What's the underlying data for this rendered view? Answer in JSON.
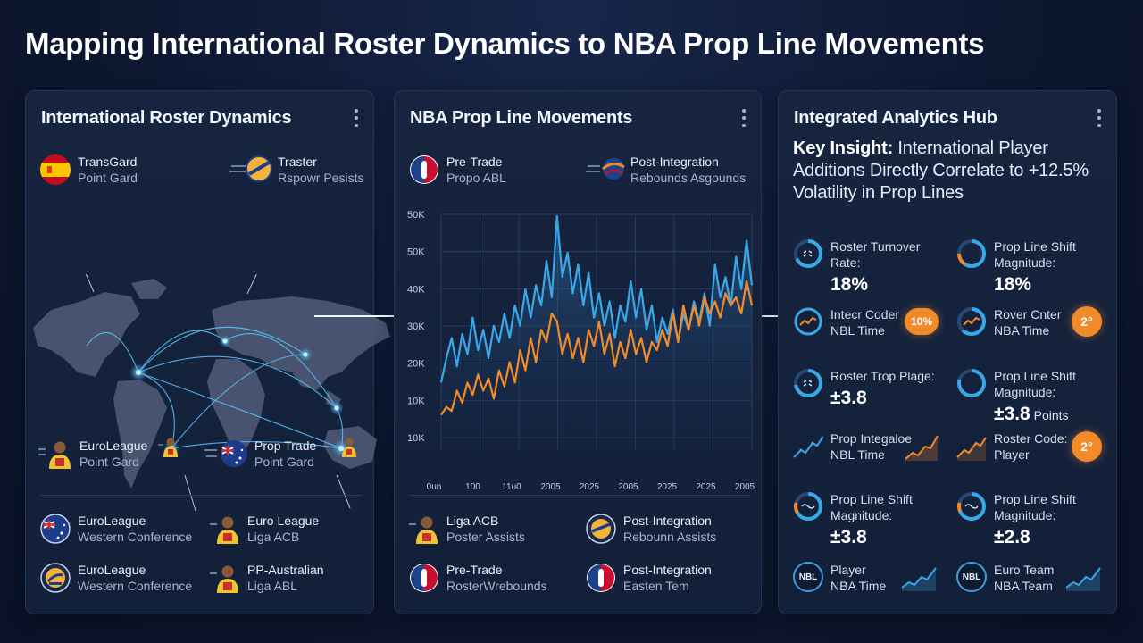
{
  "page": {
    "title": "Mapping International Roster Dynamics to NBA Prop Line Movements"
  },
  "colors": {
    "accent_blue": "#3aa8e8",
    "accent_orange": "#f28a2a",
    "panel_bg": "#16243f"
  },
  "roster_panel": {
    "title": "International Roster Dynamics",
    "top_items": [
      {
        "line1": "TransGard",
        "line2": "Point Gard",
        "icon": "spain-flag-icon"
      },
      {
        "line1": "Traster",
        "line2": "Rspowr Pesists",
        "icon": "team-logo-icon"
      },
      {
        "line1": "EuroLeague",
        "line2": "Point Gard",
        "icon": "player-avatar-icon"
      },
      {
        "line1": "Prop Trade",
        "line2": "Point Gard",
        "icon": "australia-flag-icon"
      }
    ],
    "bottom_items": [
      {
        "line1": "EuroLeague",
        "line2": "Western Conference",
        "icon": "australia-flag-icon"
      },
      {
        "line1": "Euro League",
        "line2": "Liga ACB",
        "icon": "player-avatar-icon"
      },
      {
        "line1": "EuroLeague",
        "line2": "Western Conference",
        "icon": "team-logo-icon"
      },
      {
        "line1": "PP-Australian",
        "line2": "Liga ABL",
        "icon": "player-avatar-icon"
      }
    ]
  },
  "prop_panel": {
    "title": "NBA Prop Line Movements",
    "top_items": [
      {
        "line1": "Pre-Trade",
        "line2": "Propo ABL",
        "icon": "nba-logo-icon"
      },
      {
        "line1": "Post-Integration",
        "line2": "Rebounds Asgounds",
        "icon": "basketball-icon"
      }
    ],
    "bottom_items": [
      {
        "line1": "Liga ACB",
        "line2": "Poster Assists",
        "icon": "player-avatar-icon"
      },
      {
        "line1": "Post-Integration",
        "line2": "Rebounn Assists",
        "icon": "team-logo-icon"
      },
      {
        "line1": "Pre-Trade",
        "line2": "RosterWrebounds",
        "icon": "nba-logo-icon"
      },
      {
        "line1": "Post-Integration",
        "line2": "Easten Tem",
        "icon": "nba-logo-icon"
      }
    ]
  },
  "chart_data": {
    "type": "line",
    "y_tick_labels": [
      "50K",
      "50K",
      "40K",
      "30K",
      "20K",
      "10K",
      "10K"
    ],
    "x_tick_labels": [
      "0un",
      "100",
      "11u0",
      "2005",
      "2025",
      "2005",
      "2025",
      "2025",
      "2005"
    ],
    "ylim": [
      0,
      55000
    ],
    "grid": true,
    "series": [
      {
        "color": "#3aa8e8",
        "values": [
          14000,
          20000,
          25000,
          18000,
          26000,
          21000,
          30000,
          22000,
          27000,
          20000,
          28000,
          24000,
          31000,
          25000,
          33000,
          28000,
          37000,
          30000,
          38000,
          33000,
          44000,
          35000,
          55000,
          40000,
          46000,
          36000,
          43000,
          33000,
          41000,
          30000,
          36000,
          28000,
          34000,
          25000,
          33000,
          29000,
          39000,
          30000,
          37000,
          27000,
          33000,
          24000,
          30000,
          26000,
          32000,
          24000,
          31000,
          27000,
          34000,
          29000,
          36000,
          28000,
          43000,
          35000,
          40000,
          33000,
          45000,
          37000,
          49000,
          38000
        ]
      },
      {
        "color": "#f28a2a",
        "values": [
          6000,
          8000,
          7000,
          12000,
          9000,
          14000,
          11000,
          16000,
          12000,
          15000,
          10000,
          17000,
          13000,
          19000,
          14000,
          22000,
          17000,
          25000,
          19000,
          27000,
          24000,
          31000,
          29000,
          21000,
          26000,
          20000,
          25000,
          19000,
          27000,
          23000,
          29000,
          21000,
          26000,
          18000,
          24000,
          20000,
          27000,
          21000,
          25000,
          19000,
          24000,
          22000,
          27000,
          23000,
          31000,
          24000,
          33000,
          27000,
          33000,
          28000,
          35000,
          31000,
          34000,
          30000,
          36000,
          33000,
          35000,
          31000,
          39000,
          33000
        ]
      }
    ]
  },
  "hub_panel": {
    "title": "Integrated Analytics Hub",
    "insight_bold": "Key Insight:",
    "insight_text": " International Player Additions Directly Correlate to +12.5% Volatility in Prop Lines",
    "metrics": [
      {
        "label1": "Roster Turnover",
        "label2": "Rate:",
        "value": "18%",
        "icon": "gauge-icon"
      },
      {
        "label1": "Prop Line Shift",
        "label2": "Magnitude:",
        "value": "18%",
        "icon": "gauge-icon"
      },
      {
        "label1": "Intecr Coder",
        "label2": "NBL Time",
        "badge": "10%",
        "icon": "trend-icon"
      },
      {
        "label1": "Rover Cnter",
        "label2": "NBA Time",
        "badge": "2°",
        "icon": "gauge-icon"
      },
      {
        "label1": "Roster Trop Plage:",
        "value": "±3.8",
        "icon": "gauge-icon"
      },
      {
        "label1": "Prop Line Shift",
        "label2": "Magnitude:",
        "value": "±3.8",
        "unit": " Points",
        "icon": "gauge-icon"
      },
      {
        "label1": "Prop Integaloe",
        "label2": "NBL Time",
        "icon": "trend-line-icon"
      },
      {
        "label1": "Roster Code:",
        "label2": "Player",
        "badge": "2°",
        "icon": "trend-line-icon"
      },
      {
        "label1": "Prop Line Shift",
        "label2": "Magnitude:",
        "value": "±3.8",
        "icon": "gauge-icon"
      },
      {
        "label1": "Prop Line Shift",
        "label2": "Magnitude:",
        "value": "±2.8",
        "icon": "gauge-icon"
      },
      {
        "label1": "Player",
        "label2": "NBA Time",
        "nbl": "NBL",
        "icon": "nbl-logo-icon"
      },
      {
        "label1": "Euro Team",
        "label2": "NBA Team",
        "nbl": "NBL",
        "icon": "nbl-logo-icon"
      }
    ]
  }
}
